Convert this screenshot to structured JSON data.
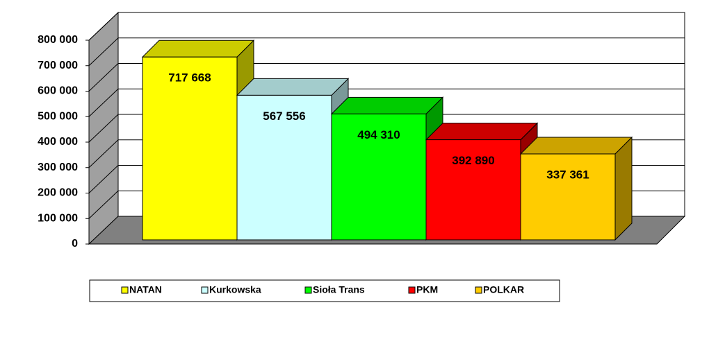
{
  "chart_data": {
    "type": "bar3d",
    "categories": [
      null
    ],
    "series": [
      {
        "name": "NATAN",
        "color": "#ffff00",
        "values": [
          717668
        ],
        "value_labels": [
          "717 668"
        ]
      },
      {
        "name": "Kurkowska",
        "color": "#ccffff",
        "values": [
          567556
        ],
        "value_labels": [
          "567 556"
        ]
      },
      {
        "name": "Sioła Trans",
        "color": "#00ff00",
        "values": [
          494310
        ],
        "value_labels": [
          "494 310"
        ]
      },
      {
        "name": "PKM",
        "color": "#ff0000",
        "values": [
          392890
        ],
        "value_labels": [
          "392 890"
        ]
      },
      {
        "name": "POLKAR",
        "color": "#ffcc00",
        "values": [
          337361
        ],
        "value_labels": [
          "337 361"
        ]
      }
    ],
    "ylim": [
      0,
      800000
    ],
    "yticks": [
      {
        "value": 0,
        "label": "0"
      },
      {
        "value": 100000,
        "label": "100 000"
      },
      {
        "value": 200000,
        "label": "200 000"
      },
      {
        "value": 300000,
        "label": "300 000"
      },
      {
        "value": 400000,
        "label": "400 000"
      },
      {
        "value": 500000,
        "label": "500 000"
      },
      {
        "value": 600000,
        "label": "600 000"
      },
      {
        "value": 700000,
        "label": "700 000"
      },
      {
        "value": 800000,
        "label": "800 000"
      }
    ],
    "grid": true,
    "legend": "bottom"
  }
}
